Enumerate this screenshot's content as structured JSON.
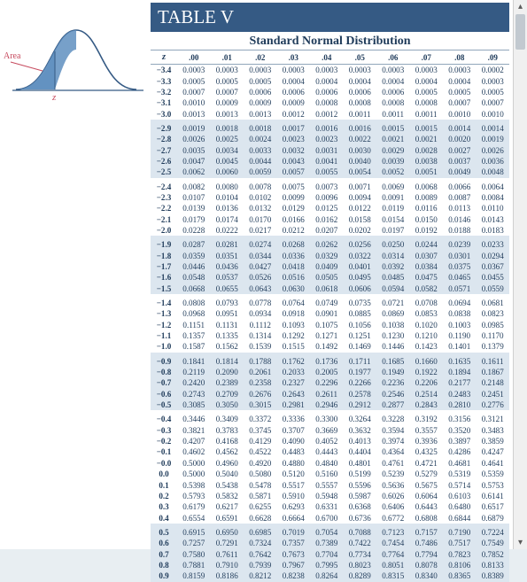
{
  "title": "TABLE V",
  "subtitle": "Standard Normal Distribution",
  "zlabel": "z",
  "area_label": "Area",
  "curve_z_label": "z",
  "colors": {
    "title_bg": "#355a84",
    "title_fg": "#ffffff",
    "shade": "#dce6ef",
    "text": "#1f3b5a",
    "rule": "#90a6bb"
  },
  "columns": [
    ".00",
    ".01",
    ".02",
    ".03",
    ".04",
    ".05",
    ".06",
    ".07",
    ".08",
    ".09"
  ],
  "groups": [
    {
      "shade": false,
      "rows": [
        {
          "z": "−3.4",
          "v": [
            "0.0003",
            "0.0003",
            "0.0003",
            "0.0003",
            "0.0003",
            "0.0003",
            "0.0003",
            "0.0003",
            "0.0003",
            "0.0002"
          ]
        },
        {
          "z": "−3.3",
          "v": [
            "0.0005",
            "0.0005",
            "0.0005",
            "0.0004",
            "0.0004",
            "0.0004",
            "0.0004",
            "0.0004",
            "0.0004",
            "0.0003"
          ]
        },
        {
          "z": "−3.2",
          "v": [
            "0.0007",
            "0.0007",
            "0.0006",
            "0.0006",
            "0.0006",
            "0.0006",
            "0.0006",
            "0.0005",
            "0.0005",
            "0.0005"
          ]
        },
        {
          "z": "−3.1",
          "v": [
            "0.0010",
            "0.0009",
            "0.0009",
            "0.0009",
            "0.0008",
            "0.0008",
            "0.0008",
            "0.0008",
            "0.0007",
            "0.0007"
          ]
        },
        {
          "z": "−3.0",
          "v": [
            "0.0013",
            "0.0013",
            "0.0013",
            "0.0012",
            "0.0012",
            "0.0011",
            "0.0011",
            "0.0011",
            "0.0010",
            "0.0010"
          ]
        }
      ]
    },
    {
      "shade": true,
      "rows": [
        {
          "z": "−2.9",
          "v": [
            "0.0019",
            "0.0018",
            "0.0018",
            "0.0017",
            "0.0016",
            "0.0016",
            "0.0015",
            "0.0015",
            "0.0014",
            "0.0014"
          ]
        },
        {
          "z": "−2.8",
          "v": [
            "0.0026",
            "0.0025",
            "0.0024",
            "0.0023",
            "0.0023",
            "0.0022",
            "0.0021",
            "0.0021",
            "0.0020",
            "0.0019"
          ]
        },
        {
          "z": "−2.7",
          "v": [
            "0.0035",
            "0.0034",
            "0.0033",
            "0.0032",
            "0.0031",
            "0.0030",
            "0.0029",
            "0.0028",
            "0.0027",
            "0.0026"
          ]
        },
        {
          "z": "−2.6",
          "v": [
            "0.0047",
            "0.0045",
            "0.0044",
            "0.0043",
            "0.0041",
            "0.0040",
            "0.0039",
            "0.0038",
            "0.0037",
            "0.0036"
          ]
        },
        {
          "z": "−2.5",
          "v": [
            "0.0062",
            "0.0060",
            "0.0059",
            "0.0057",
            "0.0055",
            "0.0054",
            "0.0052",
            "0.0051",
            "0.0049",
            "0.0048"
          ]
        }
      ]
    },
    {
      "shade": false,
      "rows": [
        {
          "z": "−2.4",
          "v": [
            "0.0082",
            "0.0080",
            "0.0078",
            "0.0075",
            "0.0073",
            "0.0071",
            "0.0069",
            "0.0068",
            "0.0066",
            "0.0064"
          ]
        },
        {
          "z": "−2.3",
          "v": [
            "0.0107",
            "0.0104",
            "0.0102",
            "0.0099",
            "0.0096",
            "0.0094",
            "0.0091",
            "0.0089",
            "0.0087",
            "0.0084"
          ]
        },
        {
          "z": "−2.2",
          "v": [
            "0.0139",
            "0.0136",
            "0.0132",
            "0.0129",
            "0.0125",
            "0.0122",
            "0.0119",
            "0.0116",
            "0.0113",
            "0.0110"
          ]
        },
        {
          "z": "−2.1",
          "v": [
            "0.0179",
            "0.0174",
            "0.0170",
            "0.0166",
            "0.0162",
            "0.0158",
            "0.0154",
            "0.0150",
            "0.0146",
            "0.0143"
          ]
        },
        {
          "z": "−2.0",
          "v": [
            "0.0228",
            "0.0222",
            "0.0217",
            "0.0212",
            "0.0207",
            "0.0202",
            "0.0197",
            "0.0192",
            "0.0188",
            "0.0183"
          ]
        }
      ]
    },
    {
      "shade": true,
      "rows": [
        {
          "z": "−1.9",
          "v": [
            "0.0287",
            "0.0281",
            "0.0274",
            "0.0268",
            "0.0262",
            "0.0256",
            "0.0250",
            "0.0244",
            "0.0239",
            "0.0233"
          ]
        },
        {
          "z": "−1.8",
          "v": [
            "0.0359",
            "0.0351",
            "0.0344",
            "0.0336",
            "0.0329",
            "0.0322",
            "0.0314",
            "0.0307",
            "0.0301",
            "0.0294"
          ]
        },
        {
          "z": "−1.7",
          "v": [
            "0.0446",
            "0.0436",
            "0.0427",
            "0.0418",
            "0.0409",
            "0.0401",
            "0.0392",
            "0.0384",
            "0.0375",
            "0.0367"
          ]
        },
        {
          "z": "−1.6",
          "v": [
            "0.0548",
            "0.0537",
            "0.0526",
            "0.0516",
            "0.0505",
            "0.0495",
            "0.0485",
            "0.0475",
            "0.0465",
            "0.0455"
          ]
        },
        {
          "z": "−1.5",
          "v": [
            "0.0668",
            "0.0655",
            "0.0643",
            "0.0630",
            "0.0618",
            "0.0606",
            "0.0594",
            "0.0582",
            "0.0571",
            "0.0559"
          ]
        }
      ]
    },
    {
      "shade": false,
      "rows": [
        {
          "z": "−1.4",
          "v": [
            "0.0808",
            "0.0793",
            "0.0778",
            "0.0764",
            "0.0749",
            "0.0735",
            "0.0721",
            "0.0708",
            "0.0694",
            "0.0681"
          ]
        },
        {
          "z": "−1.3",
          "v": [
            "0.0968",
            "0.0951",
            "0.0934",
            "0.0918",
            "0.0901",
            "0.0885",
            "0.0869",
            "0.0853",
            "0.0838",
            "0.0823"
          ]
        },
        {
          "z": "−1.2",
          "v": [
            "0.1151",
            "0.1131",
            "0.1112",
            "0.1093",
            "0.1075",
            "0.1056",
            "0.1038",
            "0.1020",
            "0.1003",
            "0.0985"
          ]
        },
        {
          "z": "−1.1",
          "v": [
            "0.1357",
            "0.1335",
            "0.1314",
            "0.1292",
            "0.1271",
            "0.1251",
            "0.1230",
            "0.1210",
            "0.1190",
            "0.1170"
          ]
        },
        {
          "z": "−1.0",
          "v": [
            "0.1587",
            "0.1562",
            "0.1539",
            "0.1515",
            "0.1492",
            "0.1469",
            "0.1446",
            "0.1423",
            "0.1401",
            "0.1379"
          ]
        }
      ]
    },
    {
      "shade": true,
      "rows": [
        {
          "z": "−0.9",
          "v": [
            "0.1841",
            "0.1814",
            "0.1788",
            "0.1762",
            "0.1736",
            "0.1711",
            "0.1685",
            "0.1660",
            "0.1635",
            "0.1611"
          ]
        },
        {
          "z": "−0.8",
          "v": [
            "0.2119",
            "0.2090",
            "0.2061",
            "0.2033",
            "0.2005",
            "0.1977",
            "0.1949",
            "0.1922",
            "0.1894",
            "0.1867"
          ]
        },
        {
          "z": "−0.7",
          "v": [
            "0.2420",
            "0.2389",
            "0.2358",
            "0.2327",
            "0.2296",
            "0.2266",
            "0.2236",
            "0.2206",
            "0.2177",
            "0.2148"
          ]
        },
        {
          "z": "−0.6",
          "v": [
            "0.2743",
            "0.2709",
            "0.2676",
            "0.2643",
            "0.2611",
            "0.2578",
            "0.2546",
            "0.2514",
            "0.2483",
            "0.2451"
          ]
        },
        {
          "z": "−0.5",
          "v": [
            "0.3085",
            "0.3050",
            "0.3015",
            "0.2981",
            "0.2946",
            "0.2912",
            "0.2877",
            "0.2843",
            "0.2810",
            "0.2776"
          ]
        }
      ]
    },
    {
      "shade": false,
      "rows": [
        {
          "z": "−0.4",
          "v": [
            "0.3446",
            "0.3409",
            "0.3372",
            "0.3336",
            "0.3300",
            "0.3264",
            "0.3228",
            "0.3192",
            "0.3156",
            "0.3121"
          ]
        },
        {
          "z": "−0.3",
          "v": [
            "0.3821",
            "0.3783",
            "0.3745",
            "0.3707",
            "0.3669",
            "0.3632",
            "0.3594",
            "0.3557",
            "0.3520",
            "0.3483"
          ]
        },
        {
          "z": "−0.2",
          "v": [
            "0.4207",
            "0.4168",
            "0.4129",
            "0.4090",
            "0.4052",
            "0.4013",
            "0.3974",
            "0.3936",
            "0.3897",
            "0.3859"
          ]
        },
        {
          "z": "−0.1",
          "v": [
            "0.4602",
            "0.4562",
            "0.4522",
            "0.4483",
            "0.4443",
            "0.4404",
            "0.4364",
            "0.4325",
            "0.4286",
            "0.4247"
          ]
        },
        {
          "z": "−0.0",
          "v": [
            "0.5000",
            "0.4960",
            "0.4920",
            "0.4880",
            "0.4840",
            "0.4801",
            "0.4761",
            "0.4721",
            "0.4681",
            "0.4641"
          ]
        },
        {
          "z": "0.0",
          "v": [
            "0.5000",
            "0.5040",
            "0.5080",
            "0.5120",
            "0.5160",
            "0.5199",
            "0.5239",
            "0.5279",
            "0.5319",
            "0.5359"
          ]
        },
        {
          "z": "0.1",
          "v": [
            "0.5398",
            "0.5438",
            "0.5478",
            "0.5517",
            "0.5557",
            "0.5596",
            "0.5636",
            "0.5675",
            "0.5714",
            "0.5753"
          ]
        },
        {
          "z": "0.2",
          "v": [
            "0.5793",
            "0.5832",
            "0.5871",
            "0.5910",
            "0.5948",
            "0.5987",
            "0.6026",
            "0.6064",
            "0.6103",
            "0.6141"
          ]
        },
        {
          "z": "0.3",
          "v": [
            "0.6179",
            "0.6217",
            "0.6255",
            "0.6293",
            "0.6331",
            "0.6368",
            "0.6406",
            "0.6443",
            "0.6480",
            "0.6517"
          ]
        },
        {
          "z": "0.4",
          "v": [
            "0.6554",
            "0.6591",
            "0.6628",
            "0.6664",
            "0.6700",
            "0.6736",
            "0.6772",
            "0.6808",
            "0.6844",
            "0.6879"
          ]
        }
      ]
    },
    {
      "shade": true,
      "rows": [
        {
          "z": "0.5",
          "v": [
            "0.6915",
            "0.6950",
            "0.6985",
            "0.7019",
            "0.7054",
            "0.7088",
            "0.7123",
            "0.7157",
            "0.7190",
            "0.7224"
          ]
        },
        {
          "z": "0.6",
          "v": [
            "0.7257",
            "0.7291",
            "0.7324",
            "0.7357",
            "0.7389",
            "0.7422",
            "0.7454",
            "0.7486",
            "0.7517",
            "0.7549"
          ]
        },
        {
          "z": "0.7",
          "v": [
            "0.7580",
            "0.7611",
            "0.7642",
            "0.7673",
            "0.7704",
            "0.7734",
            "0.7764",
            "0.7794",
            "0.7823",
            "0.7852"
          ]
        },
        {
          "z": "0.8",
          "v": [
            "0.7881",
            "0.7910",
            "0.7939",
            "0.7967",
            "0.7995",
            "0.8023",
            "0.8051",
            "0.8078",
            "0.8106",
            "0.8133"
          ]
        },
        {
          "z": "0.9",
          "v": [
            "0.8159",
            "0.8186",
            "0.8212",
            "0.8238",
            "0.8264",
            "0.8289",
            "0.8315",
            "0.8340",
            "0.8365",
            "0.8389"
          ]
        }
      ]
    }
  ]
}
